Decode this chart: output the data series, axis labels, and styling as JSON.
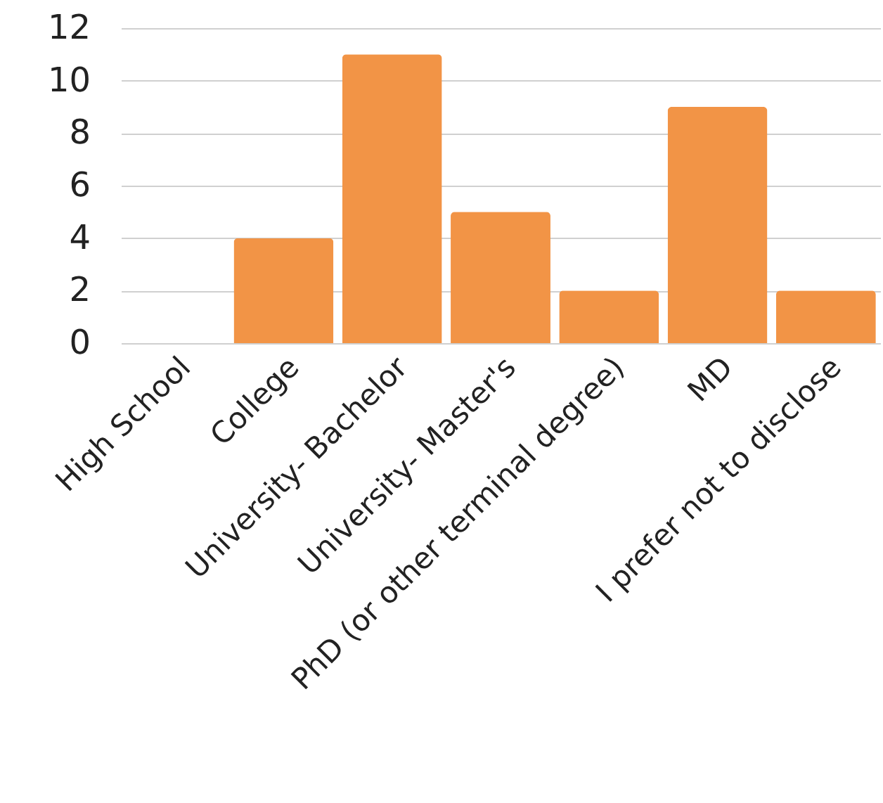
{
  "chart_data": {
    "type": "bar",
    "categories": [
      "High School",
      "College",
      "University- Bachelor",
      "University- Master's",
      "PhD (or other terminal degree)",
      "MD",
      "I prefer not to disclose"
    ],
    "values": [
      0,
      4,
      11,
      5,
      2,
      9,
      2
    ],
    "color": "#f29446",
    "ylim": [
      0,
      12
    ],
    "yticks": [
      0,
      2,
      4,
      6,
      8,
      10,
      12
    ],
    "grid": "y"
  }
}
